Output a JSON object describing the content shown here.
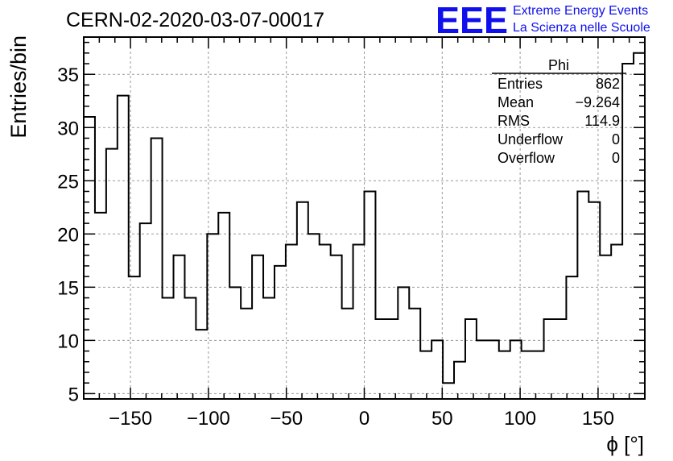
{
  "chart_data": {
    "type": "histogram",
    "title": "CERN-02-2020-03-07-00017",
    "xlabel": "ϕ [°]",
    "ylabel": "Entries/bin",
    "xlim": [
      -180,
      180
    ],
    "ylim": [
      4.5,
      38.5
    ],
    "bin_width": 7.2,
    "grid": true,
    "x_ticks": [
      -150,
      -100,
      -50,
      0,
      50,
      100,
      150
    ],
    "x_tick_labels": [
      "−150",
      "−100",
      "−50",
      "0",
      "50",
      "100",
      "150"
    ],
    "y_ticks": [
      5,
      10,
      15,
      20,
      25,
      30,
      35
    ],
    "y_tick_labels": [
      "5",
      "10",
      "15",
      "20",
      "25",
      "30",
      "35"
    ],
    "values": [
      31,
      22,
      28,
      33,
      16,
      21,
      29,
      14,
      18,
      14,
      11,
      20,
      22,
      15,
      13,
      18,
      14,
      17,
      19,
      23,
      20,
      19,
      18,
      13,
      19,
      24,
      12,
      12,
      15,
      13,
      9,
      10,
      6,
      8,
      12,
      10,
      10,
      9,
      10,
      9,
      9,
      12,
      12,
      16,
      24,
      23,
      18,
      19,
      36,
      37
    ]
  },
  "stats_box": {
    "name": "Phi",
    "rows": [
      {
        "label": "Entries",
        "value": "862"
      },
      {
        "label": "Mean",
        "value": "−9.264"
      },
      {
        "label": "RMS",
        "value": "114.9"
      },
      {
        "label": "Underflow",
        "value": "0"
      },
      {
        "label": "Overflow",
        "value": "0"
      }
    ]
  },
  "logo": {
    "mark": "EEE",
    "line1": "Extreme Energy Events",
    "line2": "La Scienza nelle Scuole",
    "color": "#1010ee"
  },
  "colors": {
    "line": "#000000",
    "grid": "#999999"
  }
}
